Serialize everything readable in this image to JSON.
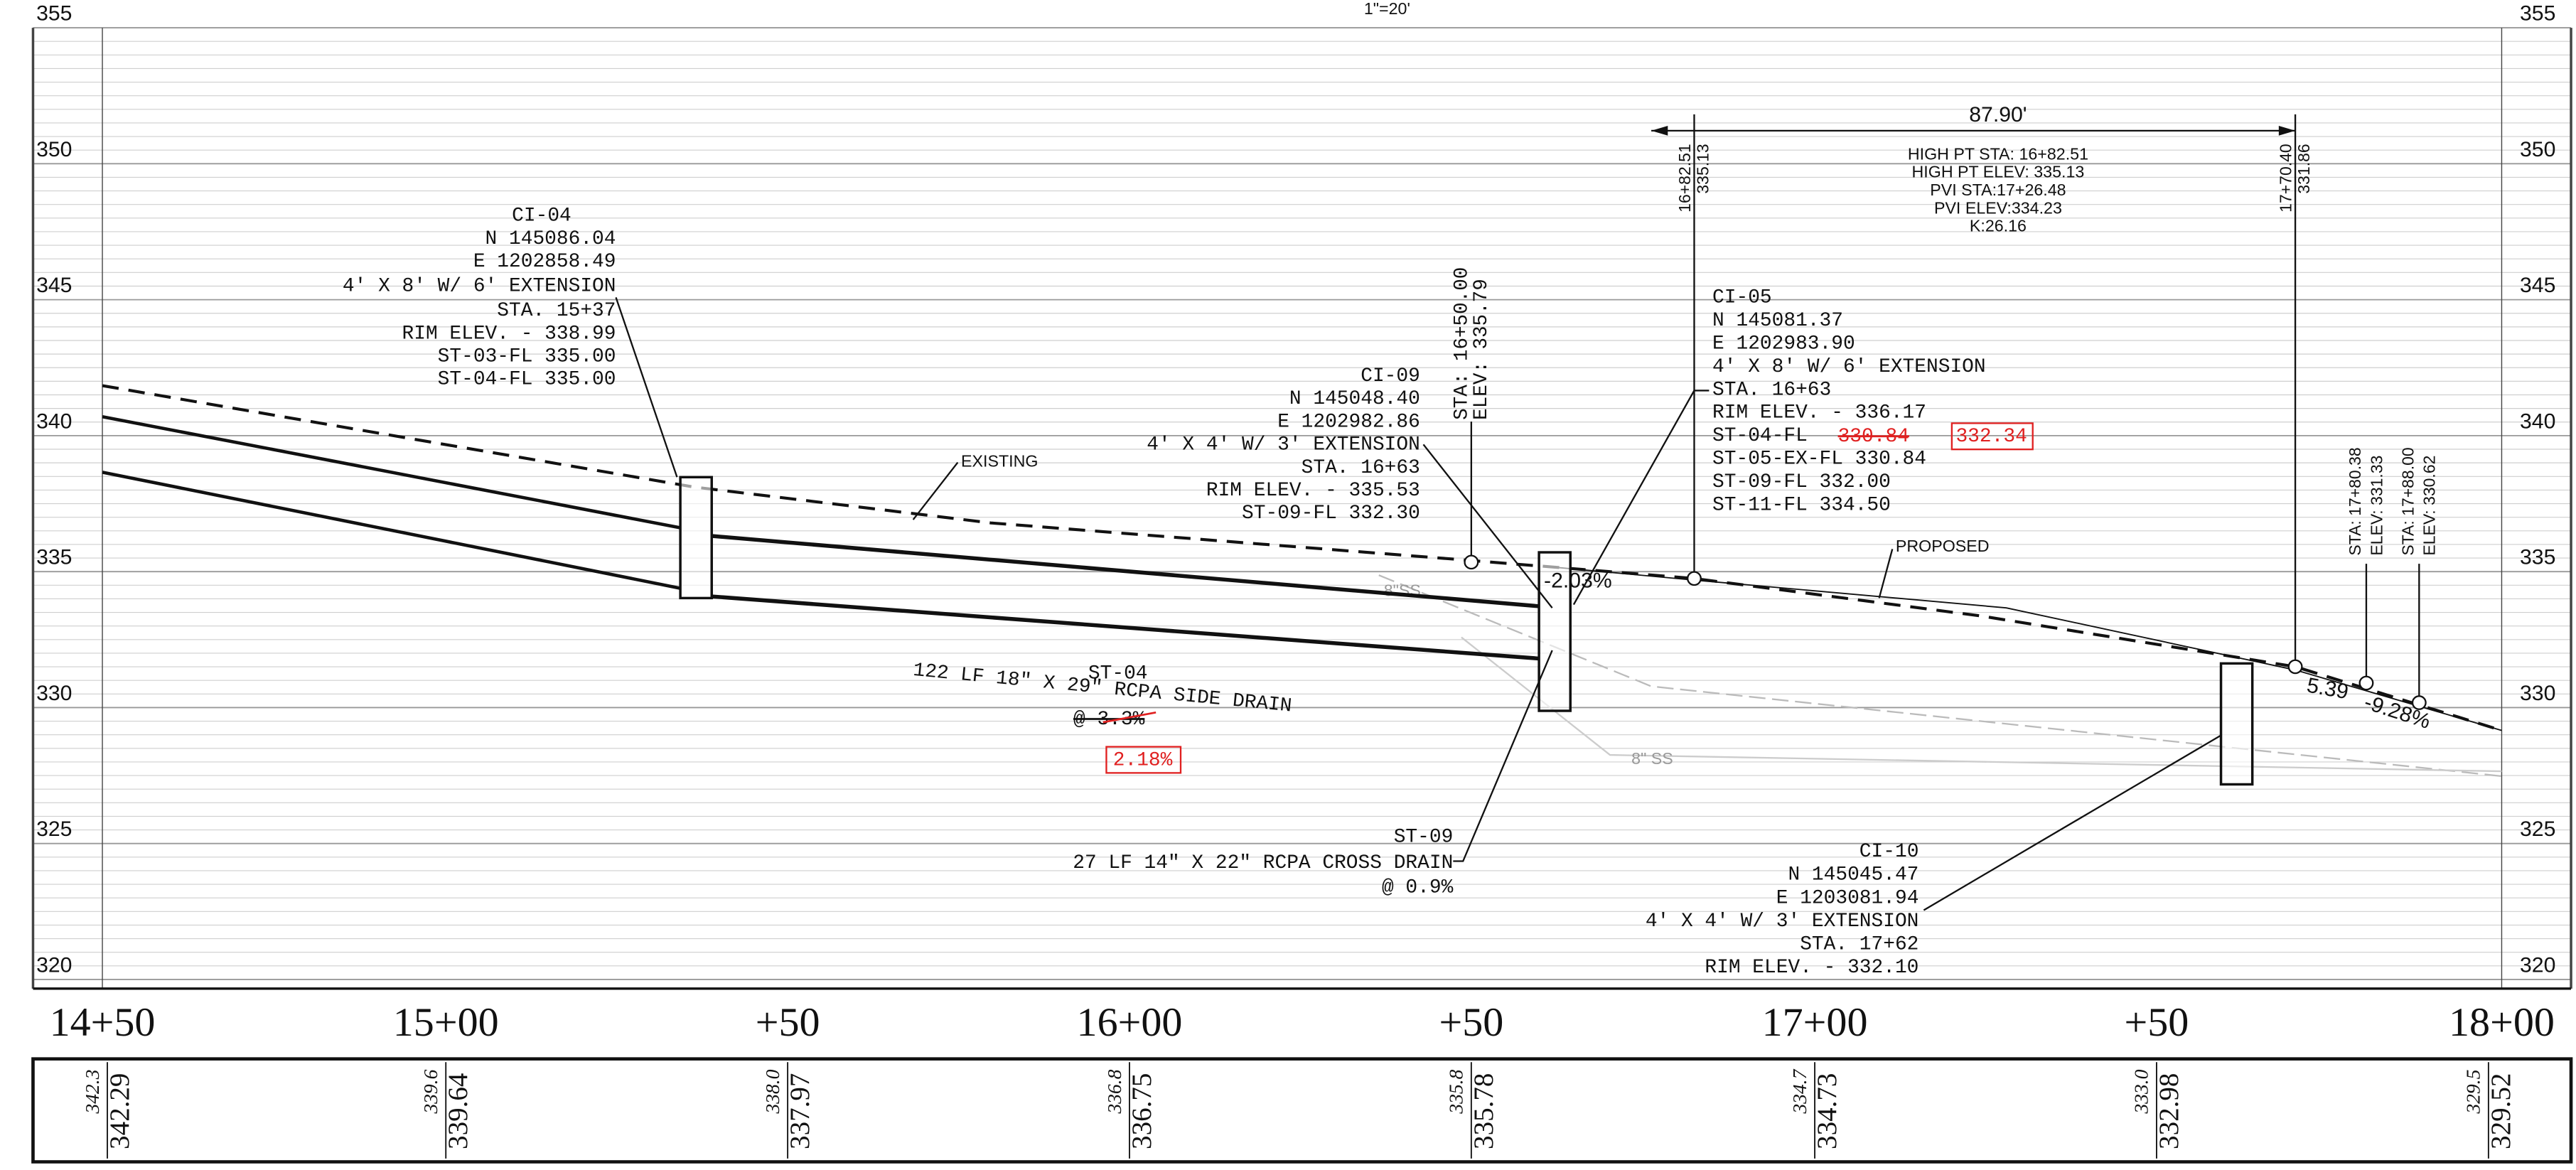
{
  "scale": "1\"=20'",
  "elevations_left": [
    "355",
    "350",
    "345",
    "340",
    "335",
    "330",
    "325",
    "320"
  ],
  "elevations_right": [
    "355",
    "350",
    "345",
    "340",
    "335",
    "330",
    "325",
    "320"
  ],
  "stations": [
    "14+50",
    "15+00",
    "+50",
    "16+00",
    "+50",
    "17+00",
    "+50",
    "18+00"
  ],
  "profile_table": [
    {
      "existing": "342.3",
      "proposed": "342.29"
    },
    {
      "existing": "339.6",
      "proposed": "339.64"
    },
    {
      "existing": "338.0",
      "proposed": "337.97"
    },
    {
      "existing": "336.8",
      "proposed": "336.75"
    },
    {
      "existing": "335.8",
      "proposed": "335.78"
    },
    {
      "existing": "334.7",
      "proposed": "334.73"
    },
    {
      "existing": "333.0",
      "proposed": "332.98"
    },
    {
      "existing": "329.5",
      "proposed": "329.52"
    }
  ],
  "callouts": {
    "ci04": [
      "CI-04",
      "N 145086.04",
      "E 1202858.49",
      "4' X 8' W/ 6' EXTENSION",
      "STA. 15+37",
      "RIM ELEV. - 338.99",
      "ST-03-FL 335.00",
      "ST-04-FL 335.00"
    ],
    "ci09": [
      "CI-09",
      "N 145048.40",
      "E 1202982.86",
      "4' X 4' W/ 3' EXTENSION",
      "STA. 16+63",
      "RIM ELEV. - 335.53",
      "ST-09-FL 332.30"
    ],
    "ci05": [
      "CI-05",
      "N 145081.37",
      "E 1202983.90",
      "4' X 8' W/ 6' EXTENSION",
      "STA. 16+63",
      "RIM ELEV. - 336.17",
      "ST-04-FL",
      "ST-05-EX-FL 330.84",
      "ST-09-FL 332.00",
      "ST-11-FL 334.50"
    ],
    "ci05_old_fl": "330.84",
    "ci05_new_fl": "332.34",
    "ci10": [
      "CI-10",
      "N 145045.47",
      "E 1203081.94",
      "4' X 4' W/ 3' EXTENSION",
      "STA. 17+62",
      "RIM ELEV. - 332.10"
    ],
    "st04": {
      "name": "ST-04",
      "pipe": "122 LF 18\" X 29\" RCPA SIDE DRAIN",
      "old_slope": "@ 3.3%",
      "new_slope": "2.18%"
    },
    "st09": [
      "ST-09",
      "27 LF 14\" X 22\" RCPA CROSS DRAIN",
      "@ 0.9%"
    ]
  },
  "high_point": [
    "HIGH PT STA: 16+82.51",
    "HIGH PT ELEV: 335.13",
    "PVI STA:17+26.48",
    "PVI ELEV:334.23",
    "K:26.16"
  ],
  "dimension": "87.90'",
  "station_marks": [
    {
      "station": "16+82.51",
      "elev": "335.13"
    },
    {
      "station": "17+70.40",
      "elev": "331.86"
    }
  ],
  "vertical_labels": [
    {
      "station": "STA: 16+50.00",
      "elev": "ELEV: 335.79"
    },
    {
      "station": "STA: 17+80.38",
      "elev": "ELEV: 331.33"
    },
    {
      "station": "STA: 17+88.00",
      "elev": "ELEV: 330.62"
    }
  ],
  "labels": {
    "existing": "EXISTING",
    "proposed": "PROPOSED",
    "grade_1": "-2.03%",
    "grade_2": "5.39",
    "grade_3": "-9.28%",
    "ss_1": "8\"SS",
    "ss_2": "8\" SS"
  }
}
